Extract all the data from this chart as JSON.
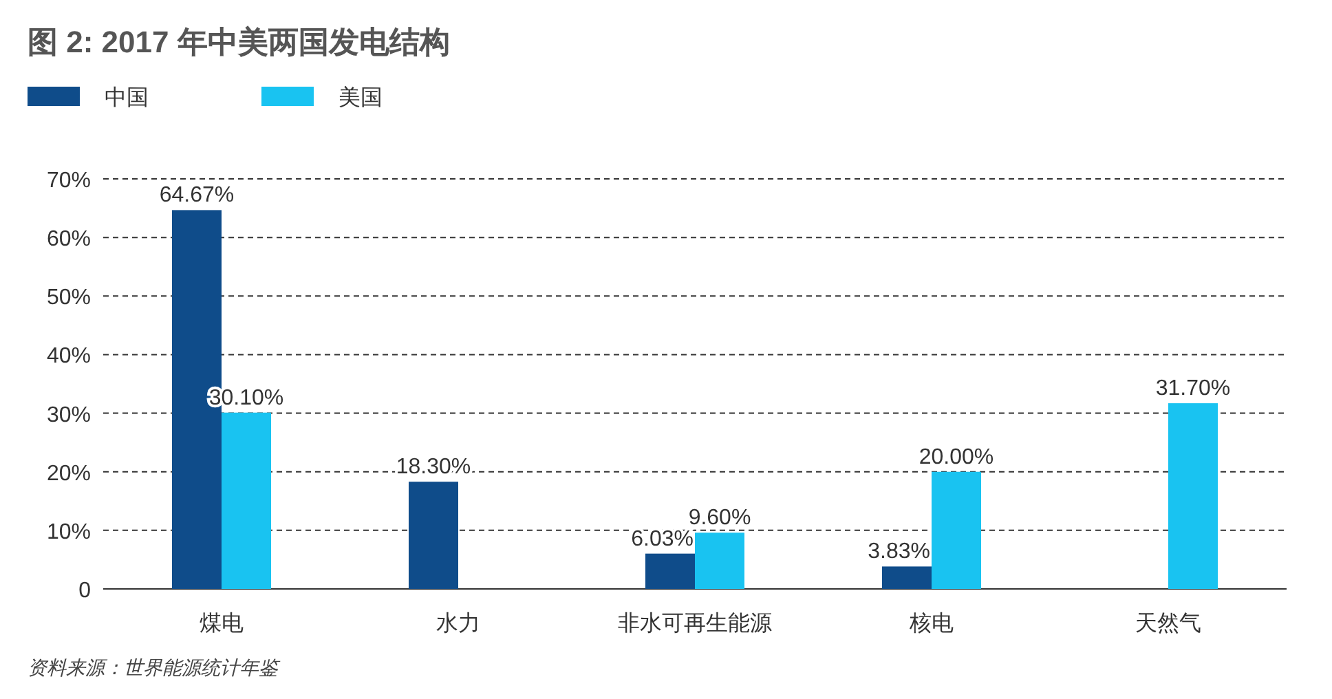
{
  "chart_data": {
    "type": "bar",
    "title": "图 2: 2017 年中美两国发电结构",
    "categories": [
      "煤电",
      "水力",
      "非水可再生能源",
      "核电",
      "天然气"
    ],
    "series": [
      {
        "name": "中国",
        "color": "#0f4c8a",
        "values": [
          64.67,
          18.3,
          6.03,
          3.83,
          null
        ],
        "value_labels": [
          "64.67%",
          "18.30%",
          "6.03%",
          "3.83%",
          null
        ]
      },
      {
        "name": "美国",
        "color": "#19c3f1",
        "values": [
          30.1,
          null,
          9.6,
          20.0,
          31.7
        ],
        "value_labels": [
          "30.10%",
          null,
          "9.60%",
          "20.00%",
          "31.70%"
        ]
      }
    ],
    "ylim": [
      0,
      70
    ],
    "yticks": [
      {
        "value": 0,
        "label": "0"
      },
      {
        "value": 10,
        "label": "10%"
      },
      {
        "value": 20,
        "label": "20%"
      },
      {
        "value": 30,
        "label": "30%"
      },
      {
        "value": 40,
        "label": "40%"
      },
      {
        "value": 50,
        "label": "50%"
      },
      {
        "value": 60,
        "label": "60%"
      },
      {
        "value": 70,
        "label": "70%"
      }
    ],
    "grid": "y",
    "line_style": "dashed",
    "legend": "top left",
    "annotations": [
      "资料来源：世界能源统计年鉴"
    ]
  }
}
